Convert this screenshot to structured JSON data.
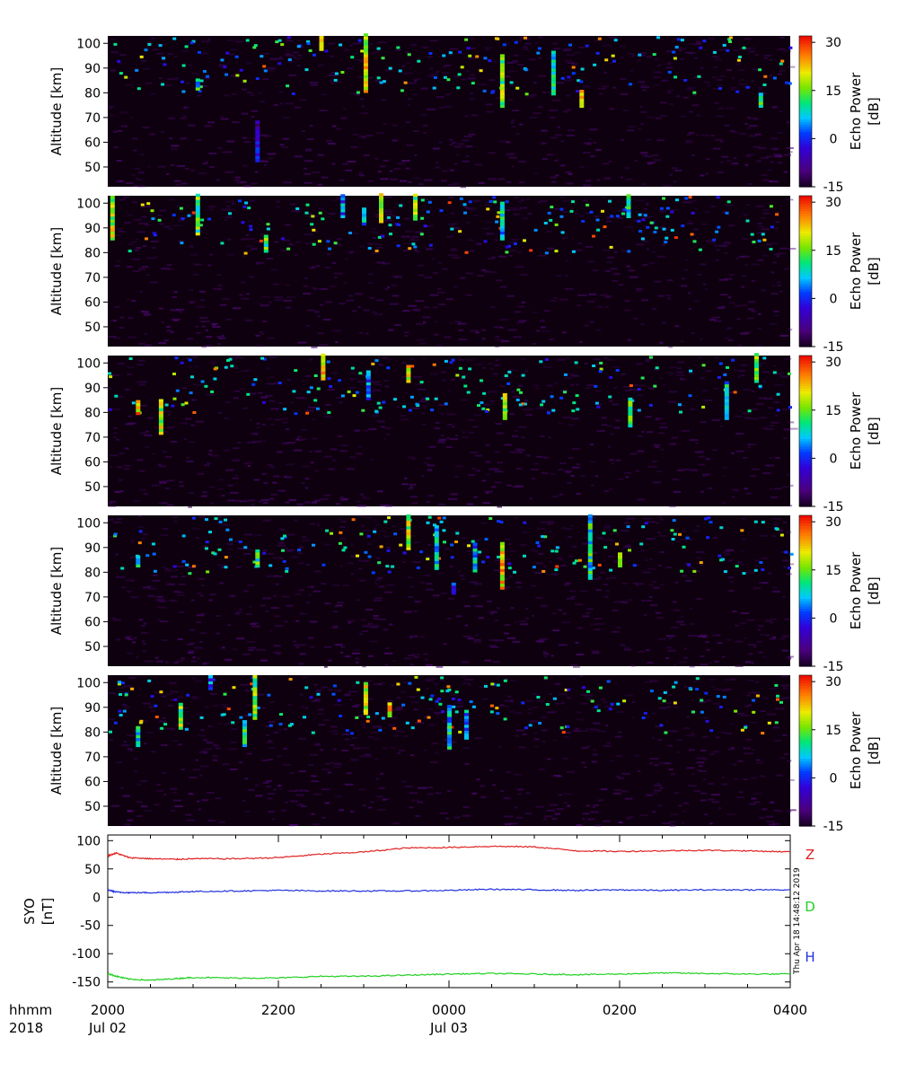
{
  "figure": {
    "stamp": "Thu Apr 18 14:48:12 2019",
    "time_axis": {
      "row1_label": "hhmm",
      "row2_label": "2018",
      "ticks": [
        {
          "t": 0,
          "hhmm": "2000",
          "date": "Jul 02"
        },
        {
          "t": 2,
          "hhmm": "2200",
          "date": ""
        },
        {
          "t": 4,
          "hhmm": "0000",
          "date": "Jul 03"
        },
        {
          "t": 6,
          "hhmm": "0200",
          "date": ""
        },
        {
          "t": 8,
          "hhmm": "0400",
          "date": ""
        }
      ],
      "range_hours": [
        0,
        8
      ]
    }
  },
  "chart_data": [
    {
      "type": "heatmap",
      "panel": 1,
      "ylabel": "Altitude [km]",
      "yticks": [
        "50",
        "60",
        "70",
        "80",
        "90",
        "100"
      ],
      "ylim": [
        42,
        103
      ],
      "colorbar": {
        "label1": "Echo Power",
        "label2": "[dB]",
        "ticks": [
          "30",
          "15",
          "0",
          "-15"
        ],
        "range": [
          -15,
          32
        ]
      },
      "echoes": [
        {
          "t": 3.02,
          "a0": 80,
          "a1": 103,
          "dB": 22
        },
        {
          "t": 4.62,
          "a0": 74,
          "a1": 95,
          "dB": 18
        },
        {
          "t": 5.22,
          "a0": 79,
          "a1": 97,
          "dB": 12
        },
        {
          "t": 2.5,
          "a0": 97,
          "a1": 103,
          "dB": 20
        },
        {
          "t": 1.05,
          "a0": 81,
          "a1": 85,
          "dB": 12
        },
        {
          "t": 5.55,
          "a0": 74,
          "a1": 81,
          "dB": 25
        },
        {
          "t": 1.75,
          "a0": 52,
          "a1": 68,
          "dB": -2
        },
        {
          "t": 7.65,
          "a0": 74,
          "a1": 79,
          "dB": 16
        }
      ]
    },
    {
      "type": "heatmap",
      "panel": 2,
      "ylabel": "Altitude [km]",
      "yticks": [
        "50",
        "60",
        "70",
        "80",
        "90",
        "100"
      ],
      "ylim": [
        42,
        103
      ],
      "colorbar": {
        "label1": "Echo Power",
        "label2": "[dB]",
        "ticks": [
          "30",
          "15",
          "0",
          "-15"
        ],
        "range": [
          -15,
          32
        ]
      },
      "echoes": [
        {
          "t": 1.05,
          "a0": 87,
          "a1": 103,
          "dB": 16
        },
        {
          "t": 3.2,
          "a0": 92,
          "a1": 103,
          "dB": 22
        },
        {
          "t": 3.6,
          "a0": 93,
          "a1": 103,
          "dB": 18
        },
        {
          "t": 4.62,
          "a0": 85,
          "a1": 100,
          "dB": 10
        },
        {
          "t": 2.75,
          "a0": 94,
          "a1": 103,
          "dB": 5
        },
        {
          "t": 3.0,
          "a0": 91,
          "a1": 98,
          "dB": 8
        },
        {
          "t": 6.1,
          "a0": 94,
          "a1": 103,
          "dB": 12
        },
        {
          "t": 0.05,
          "a0": 85,
          "a1": 103,
          "dB": 20
        },
        {
          "t": 1.85,
          "a0": 80,
          "a1": 87,
          "dB": 14
        }
      ]
    },
    {
      "type": "heatmap",
      "panel": 3,
      "ylabel": "Altitude [km]",
      "yticks": [
        "50",
        "60",
        "70",
        "80",
        "90",
        "100"
      ],
      "ylim": [
        42,
        103
      ],
      "colorbar": {
        "label1": "Echo Power",
        "label2": "[dB]",
        "ticks": [
          "30",
          "15",
          "0",
          "-15"
        ],
        "range": [
          -15,
          32
        ]
      },
      "echoes": [
        {
          "t": 0.62,
          "a0": 71,
          "a1": 85,
          "dB": 20
        },
        {
          "t": 2.52,
          "a0": 93,
          "a1": 103,
          "dB": 24
        },
        {
          "t": 3.52,
          "a0": 92,
          "a1": 99,
          "dB": 22
        },
        {
          "t": 4.65,
          "a0": 77,
          "a1": 87,
          "dB": 18
        },
        {
          "t": 6.12,
          "a0": 74,
          "a1": 86,
          "dB": 14
        },
        {
          "t": 7.6,
          "a0": 92,
          "a1": 103,
          "dB": 16
        },
        {
          "t": 7.25,
          "a0": 77,
          "a1": 92,
          "dB": 10
        },
        {
          "t": 3.05,
          "a0": 85,
          "a1": 96,
          "dB": 6
        },
        {
          "t": 0.35,
          "a0": 79,
          "a1": 84,
          "dB": 26
        }
      ]
    },
    {
      "type": "heatmap",
      "panel": 4,
      "ylabel": "Altitude [km]",
      "yticks": [
        "50",
        "60",
        "70",
        "80",
        "90",
        "100"
      ],
      "ylim": [
        42,
        103
      ],
      "colorbar": {
        "label1": "Echo Power",
        "label2": "[dB]",
        "ticks": [
          "30",
          "15",
          "0",
          "-15"
        ],
        "range": [
          -15,
          32
        ]
      },
      "echoes": [
        {
          "t": 4.62,
          "a0": 73,
          "a1": 92,
          "dB": 24
        },
        {
          "t": 5.65,
          "a0": 77,
          "a1": 103,
          "dB": 12
        },
        {
          "t": 3.52,
          "a0": 89,
          "a1": 103,
          "dB": 20
        },
        {
          "t": 3.85,
          "a0": 81,
          "a1": 98,
          "dB": 10
        },
        {
          "t": 4.3,
          "a0": 80,
          "a1": 92,
          "dB": 8
        },
        {
          "t": 1.75,
          "a0": 82,
          "a1": 89,
          "dB": 15
        },
        {
          "t": 0.35,
          "a0": 82,
          "a1": 86,
          "dB": 14
        },
        {
          "t": 4.05,
          "a0": 71,
          "a1": 75,
          "dB": 2
        },
        {
          "t": 6.0,
          "a0": 82,
          "a1": 87,
          "dB": 22
        }
      ]
    },
    {
      "type": "heatmap",
      "panel": 5,
      "ylabel": "Altitude [km]",
      "yticks": [
        "50",
        "60",
        "70",
        "80",
        "90",
        "100"
      ],
      "ylim": [
        42,
        103
      ],
      "colorbar": {
        "label1": "Echo Power",
        "label2": "[dB]",
        "ticks": [
          "30",
          "15",
          "0",
          "-15"
        ],
        "range": [
          -15,
          32
        ]
      },
      "echoes": [
        {
          "t": 1.72,
          "a0": 85,
          "a1": 103,
          "dB": 16
        },
        {
          "t": 1.6,
          "a0": 74,
          "a1": 84,
          "dB": 14
        },
        {
          "t": 3.02,
          "a0": 87,
          "a1": 100,
          "dB": 22
        },
        {
          "t": 4.0,
          "a0": 73,
          "a1": 91,
          "dB": 10
        },
        {
          "t": 4.2,
          "a0": 77,
          "a1": 89,
          "dB": 8
        },
        {
          "t": 0.85,
          "a0": 81,
          "a1": 91,
          "dB": 18
        },
        {
          "t": 0.35,
          "a0": 74,
          "a1": 82,
          "dB": 12
        },
        {
          "t": 3.3,
          "a0": 86,
          "a1": 92,
          "dB": 24
        },
        {
          "t": 1.2,
          "a0": 97,
          "a1": 103,
          "dB": 6
        }
      ]
    },
    {
      "type": "line",
      "panel": 6,
      "ylabel": "SYO",
      "ylabel2": "[nT]",
      "ylim": [
        -160,
        110
      ],
      "yticks": [
        "100",
        "50",
        "0",
        "-50",
        "-100",
        "-150"
      ],
      "series": [
        {
          "name": "Z",
          "color": "#e02020",
          "x": [
            0,
            0.1,
            0.25,
            0.5,
            0.8,
            1.0,
            1.5,
            2.0,
            2.5,
            3.0,
            3.5,
            4.0,
            4.5,
            5.0,
            5.5,
            6.0,
            6.5,
            7.0,
            7.5,
            8.0
          ],
          "y": [
            73,
            78,
            70,
            68,
            67,
            68,
            68,
            70,
            76,
            80,
            87,
            88,
            90,
            89,
            82,
            81,
            82,
            83,
            82,
            80
          ]
        },
        {
          "name": "D",
          "color": "#20d020",
          "x": [
            0,
            0.1,
            0.25,
            0.5,
            0.8,
            1.0,
            1.5,
            2.0,
            2.5,
            3.0,
            3.5,
            4.0,
            4.5,
            5.0,
            5.5,
            6.0,
            6.5,
            7.0,
            7.5,
            8.0
          ],
          "y": [
            -135,
            -140,
            -145,
            -147,
            -144,
            -142,
            -143,
            -143,
            -140,
            -140,
            -138,
            -136,
            -135,
            -136,
            -137,
            -136,
            -134,
            -135,
            -136,
            -136
          ]
        },
        {
          "name": "H",
          "color": "#2030e0",
          "x": [
            0,
            0.1,
            0.25,
            0.5,
            0.8,
            1.0,
            1.5,
            2.0,
            2.5,
            3.0,
            3.5,
            4.0,
            4.5,
            5.0,
            5.5,
            6.0,
            6.5,
            7.0,
            7.5,
            8.0
          ],
          "y": [
            13,
            9,
            8,
            8,
            9,
            10,
            11,
            12,
            11,
            11,
            11,
            12,
            14,
            13,
            12,
            13,
            12,
            13,
            13,
            13
          ]
        }
      ]
    }
  ]
}
